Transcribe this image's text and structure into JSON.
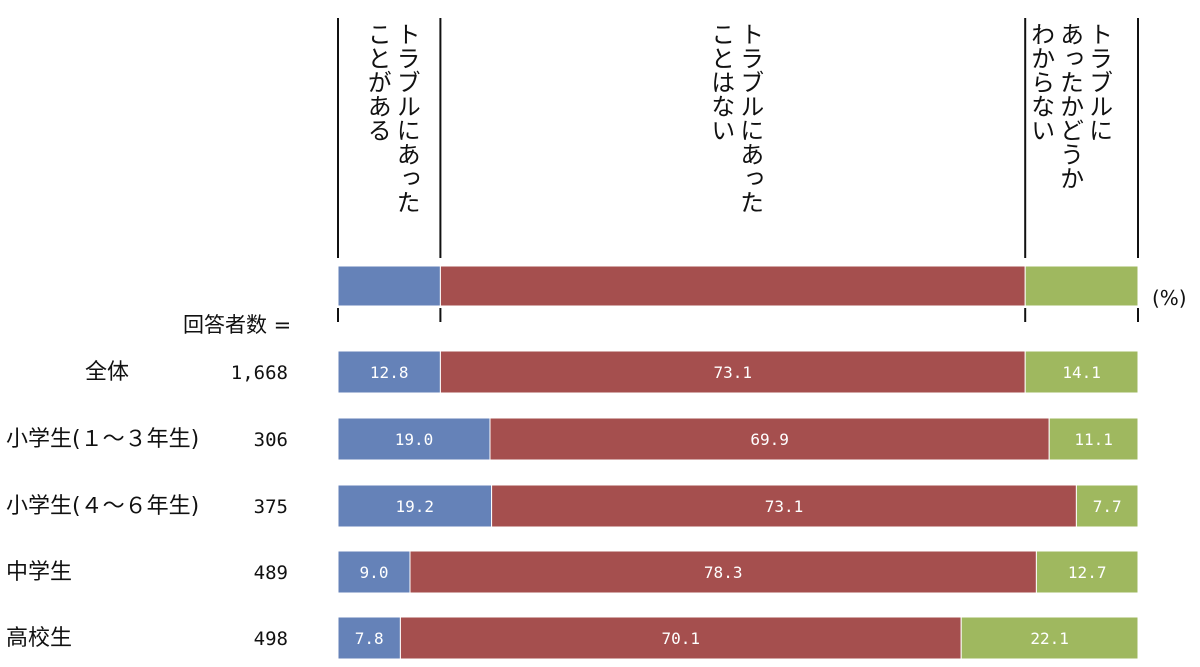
{
  "chart_data": {
    "type": "bar",
    "orientation": "horizontal",
    "stacked": true,
    "unit": "(%)",
    "count_header": "回答者数 =",
    "series": [
      {
        "name": "トラブルにあったことがある",
        "color": "#6582b8",
        "legend_lines": [
          "トラブルにあった",
          "ことがある"
        ]
      },
      {
        "name": "トラブルにあったことはない",
        "color": "#a54f4e",
        "legend_lines": [
          "トラブルにあった",
          "ことはない"
        ]
      },
      {
        "name": "トラブルにあったかどうかわからない",
        "color": "#9fb85f",
        "legend_lines": [
          "トラブルに",
          "あったかどうか",
          "わからない"
        ]
      }
    ],
    "rows": [
      {
        "label": "全体",
        "count": "1,668",
        "values": [
          12.8,
          73.1,
          14.1
        ],
        "value_labels": [
          "12.8",
          "73.1",
          "14.1"
        ]
      },
      {
        "label": "小学生(１～３年生)",
        "count": "306",
        "values": [
          19.0,
          69.9,
          11.1
        ],
        "value_labels": [
          "19.0",
          "69.9",
          "11.1"
        ]
      },
      {
        "label": "小学生(４～６年生)",
        "count": "375",
        "values": [
          19.2,
          73.1,
          7.7
        ],
        "value_labels": [
          "19.2",
          "73.1",
          "7.7"
        ]
      },
      {
        "label": "中学生",
        "count": "489",
        "values": [
          9.0,
          78.3,
          12.7
        ],
        "value_labels": [
          "9.0",
          "78.3",
          "12.7"
        ]
      },
      {
        "label": "高校生",
        "count": "498",
        "values": [
          7.8,
          70.1,
          22.1
        ],
        "value_labels": [
          "7.8",
          "70.1",
          "22.1"
        ]
      }
    ],
    "xlim": [
      0,
      100
    ],
    "grid": false
  }
}
